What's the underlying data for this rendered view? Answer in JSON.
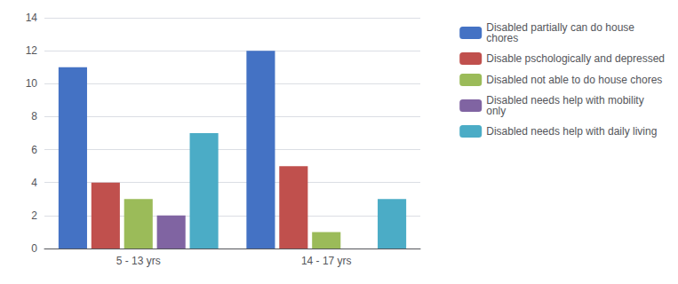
{
  "chart_data": {
    "type": "bar",
    "categories": [
      "5 - 13 yrs",
      "14 - 17 yrs"
    ],
    "series": [
      {
        "name": "Disabled partially can do house\nchores",
        "color": "#4472C4",
        "values": [
          11,
          12
        ]
      },
      {
        "name": "Disable pschologically and depressed",
        "color": "#C0504D",
        "values": [
          4,
          5
        ]
      },
      {
        "name": "Disabled not able to do house chores",
        "color": "#9BBB59",
        "values": [
          3,
          1
        ]
      },
      {
        "name": "Disabled needs help with mobility\nonly",
        "color": "#8064A2",
        "values": [
          2,
          0
        ]
      },
      {
        "name": "Disabled needs help with daily living",
        "color": "#4BACC6",
        "values": [
          7,
          3
        ]
      }
    ],
    "ylim": [
      0,
      14
    ],
    "yticks": [
      0,
      2,
      4,
      6,
      8,
      10,
      12,
      14
    ],
    "grid": true,
    "legend": "right"
  }
}
